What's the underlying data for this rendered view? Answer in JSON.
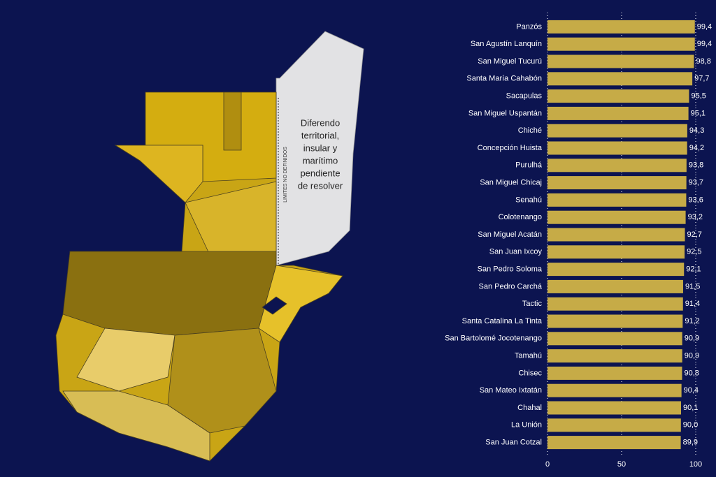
{
  "map": {
    "notice": "LIMITES NO DEFINIDOS",
    "dispute_lines": [
      "Diferendo",
      "territorial,",
      "insular y",
      "marítimo",
      "pendiente",
      "de resolver"
    ]
  },
  "chart_data": {
    "type": "bar",
    "orientation": "horizontal",
    "color": "#c6ab47",
    "categories": [
      "Panzós",
      "San Agustín Lanquín",
      "San Miguel Tucurú",
      "Santa María Cahabón",
      "Sacapulas",
      "San Miguel Uspantán",
      "Chiché",
      "Concepción Huista",
      "Purulhá",
      "San Miguel Chicaj",
      "Senahú",
      "Colotenango",
      "San Miguel Acatán",
      "San Juan Ixcoy",
      "San Pedro Soloma",
      "San Pedro Carchá",
      "Tactic",
      "Santa Catalina La Tinta",
      "San Bartolomé Jocotenango",
      "Tamahú",
      "Chisec",
      "San Mateo Ixtatán",
      "Chahal",
      "La Unión",
      "San Juan Cotzal"
    ],
    "values": [
      99.4,
      99.4,
      98.8,
      97.7,
      95.5,
      95.1,
      94.3,
      94.2,
      93.8,
      93.7,
      93.6,
      93.2,
      92.7,
      92.5,
      92.1,
      91.5,
      91.4,
      91.2,
      90.9,
      90.9,
      90.8,
      90.4,
      90.1,
      90.0,
      89.9
    ],
    "value_labels": [
      "99,4",
      "99,4",
      "98,8",
      "97,7",
      "95,5",
      "95,1",
      "94,3",
      "94,2",
      "93,8",
      "93,7",
      "93,6",
      "93,2",
      "92,7",
      "92,5",
      "92,1",
      "91,5",
      "91,4",
      "91,2",
      "90,9",
      "90,9",
      "90,8",
      "90,4",
      "90,1",
      "90,0",
      "89,9"
    ],
    "xlim": [
      0,
      100
    ],
    "xticks": [
      0,
      50,
      100
    ],
    "grid": true
  }
}
